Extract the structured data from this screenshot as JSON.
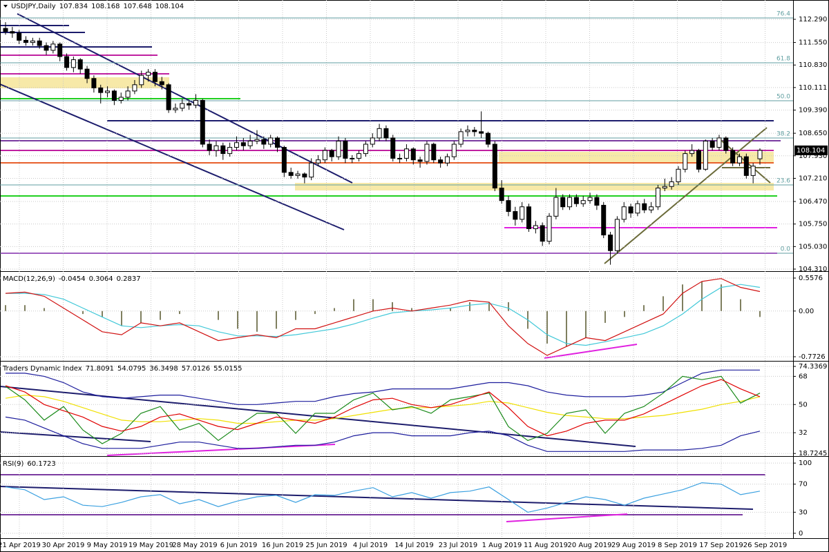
{
  "chart_data": [
    {
      "type": "candlestick",
      "title": "USDJPY,Daily",
      "ylim": [
        104.266,
        112.863
      ],
      "yticks": [
        {
          "value": 112.29,
          "label": "112.290"
        },
        {
          "value": 111.55,
          "label": "111.550"
        },
        {
          "value": 110.83,
          "label": "110.830"
        },
        110.111,
        {
          "value": 109.39,
          "label": "109.390"
        },
        {
          "value": 108.65,
          "label": "108.650"
        },
        {
          "value": 107.93,
          "label": "107.930"
        },
        {
          "value": 107.21,
          "label": "107.210"
        },
        {
          "value": 106.47,
          "label": "106.470"
        },
        {
          "value": 105.75,
          "label": "105.750"
        },
        {
          "value": 105.03,
          "label": "105.030"
        },
        {
          "value": 104.31,
          "label": "104.310"
        }
      ],
      "x_labels": [
        "21 Apr 2019",
        "30 Apr 2019",
        "9 May 2019",
        "19 May 2019",
        "28 May 2019",
        "6 Jun 2019",
        "16 Jun 2019",
        "25 Jun 2019",
        "4 Jul 2019",
        "14 Jul 2019",
        "23 Jul 2019",
        "1 Aug 2019",
        "11 Aug 2019",
        "20 Aug 2019",
        "29 Aug 2019",
        "8 Sep 2019",
        "17 Sep 2019",
        "26 Sep 2019"
      ],
      "fib_labels": [
        "76.4",
        "61.8",
        "50.0",
        "38.2",
        "23.6",
        "0.0"
      ],
      "fib_prices": [
        112.334,
        110.901,
        109.688,
        108.498,
        106.999,
        104.816
      ],
      "fib_color": "#5f9ea0",
      "candles": [
        [
          112.0,
          112.2,
          111.8,
          111.9
        ],
        [
          111.9,
          112.05,
          111.7,
          111.85
        ],
        [
          111.85,
          111.95,
          111.5,
          111.62
        ],
        [
          111.62,
          111.75,
          111.45,
          111.55
        ],
        [
          111.55,
          111.7,
          111.45,
          111.6
        ],
        [
          111.6,
          111.7,
          111.35,
          111.45
        ],
        [
          111.45,
          111.55,
          111.15,
          111.3
        ],
        [
          111.3,
          111.6,
          111.2,
          111.5
        ],
        [
          111.5,
          111.55,
          110.95,
          111.1
        ],
        [
          111.1,
          111.2,
          110.65,
          110.75
        ],
        [
          110.75,
          111.1,
          110.6,
          111.0
        ],
        [
          111.0,
          111.05,
          110.55,
          110.7
        ],
        [
          110.7,
          110.8,
          110.25,
          110.4
        ],
        [
          110.4,
          110.5,
          109.95,
          110.1
        ],
        [
          110.1,
          110.2,
          109.6,
          109.95
        ],
        [
          109.95,
          110.15,
          109.8,
          110.0
        ],
        [
          110.0,
          110.05,
          109.55,
          109.7
        ],
        [
          109.7,
          109.95,
          109.6,
          109.8
        ],
        [
          109.8,
          110.15,
          109.7,
          110.0
        ],
        [
          110.0,
          110.35,
          109.9,
          110.2
        ],
        [
          110.2,
          110.65,
          110.1,
          110.5
        ],
        [
          110.5,
          110.7,
          110.3,
          110.6
        ],
        [
          110.6,
          110.7,
          110.15,
          110.3
        ],
        [
          110.3,
          110.45,
          110.05,
          110.2
        ],
        [
          110.2,
          110.25,
          109.3,
          109.4
        ],
        [
          109.4,
          109.6,
          109.3,
          109.45
        ],
        [
          109.45,
          109.75,
          109.35,
          109.6
        ],
        [
          109.6,
          109.7,
          109.4,
          109.55
        ],
        [
          109.55,
          109.9,
          109.45,
          109.7
        ],
        [
          109.7,
          109.75,
          108.2,
          108.3
        ],
        [
          108.3,
          108.45,
          107.95,
          108.1
        ],
        [
          108.1,
          108.4,
          107.9,
          108.25
        ],
        [
          108.25,
          108.35,
          107.8,
          108.0
        ],
        [
          108.0,
          108.35,
          107.9,
          108.2
        ],
        [
          108.2,
          108.55,
          108.1,
          108.35
        ],
        [
          108.35,
          108.5,
          108.1,
          108.25
        ],
        [
          108.25,
          108.6,
          108.15,
          108.4
        ],
        [
          108.4,
          108.75,
          108.3,
          108.45
        ],
        [
          108.45,
          108.55,
          108.15,
          108.3
        ],
        [
          108.3,
          108.6,
          108.2,
          108.5
        ],
        [
          108.5,
          108.55,
          108.05,
          108.2
        ],
        [
          108.2,
          108.25,
          107.25,
          107.4
        ],
        [
          107.4,
          107.55,
          107.2,
          107.3
        ],
        [
          107.3,
          107.45,
          107.2,
          107.35
        ],
        [
          107.35,
          107.4,
          107.05,
          107.25
        ],
        [
          107.25,
          107.85,
          107.15,
          107.7
        ],
        [
          107.7,
          107.95,
          107.6,
          107.8
        ],
        [
          107.8,
          108.2,
          107.7,
          108.1
        ],
        [
          108.1,
          108.15,
          107.75,
          107.9
        ],
        [
          107.9,
          108.55,
          107.8,
          108.4
        ],
        [
          108.4,
          108.5,
          107.7,
          107.85
        ],
        [
          107.85,
          107.95,
          107.7,
          107.85
        ],
        [
          107.85,
          108.1,
          107.75,
          108.0
        ],
        [
          108.0,
          108.4,
          107.9,
          108.3
        ],
        [
          108.3,
          108.65,
          108.2,
          108.5
        ],
        [
          108.5,
          108.95,
          108.4,
          108.8
        ],
        [
          108.8,
          108.9,
          108.4,
          108.5
        ],
        [
          108.5,
          108.6,
          107.75,
          107.85
        ],
        [
          107.85,
          108.0,
          107.7,
          107.85
        ],
        [
          107.85,
          108.3,
          107.75,
          108.15
        ],
        [
          108.15,
          108.2,
          107.65,
          107.8
        ],
        [
          107.8,
          107.9,
          107.55,
          107.75
        ],
        [
          107.75,
          108.4,
          107.65,
          108.3
        ],
        [
          108.3,
          108.35,
          107.7,
          107.8
        ],
        [
          107.8,
          107.9,
          107.55,
          107.7
        ],
        [
          107.7,
          108.0,
          107.6,
          107.9
        ],
        [
          107.9,
          108.4,
          107.8,
          108.3
        ],
        [
          108.3,
          108.8,
          108.2,
          108.7
        ],
        [
          108.7,
          108.9,
          108.55,
          108.75
        ],
        [
          108.75,
          108.85,
          108.55,
          108.7
        ],
        [
          108.7,
          109.35,
          108.5,
          108.65
        ],
        [
          108.65,
          108.7,
          108.2,
          108.3
        ],
        [
          108.3,
          108.4,
          106.8,
          106.9
        ],
        [
          106.9,
          107.15,
          106.4,
          106.5
        ],
        [
          106.5,
          106.65,
          106.0,
          106.15
        ],
        [
          106.15,
          106.3,
          105.7,
          105.9
        ],
        [
          105.9,
          106.45,
          105.8,
          106.3
        ],
        [
          106.3,
          106.4,
          105.5,
          105.6
        ],
        [
          105.6,
          105.85,
          105.45,
          105.7
        ],
        [
          105.7,
          105.8,
          105.05,
          105.2
        ],
        [
          105.2,
          106.1,
          105.1,
          106.0
        ],
        [
          106.0,
          106.9,
          105.9,
          106.6
        ],
        [
          106.6,
          106.7,
          106.2,
          106.3
        ],
        [
          106.3,
          106.7,
          106.2,
          106.6
        ],
        [
          106.6,
          106.7,
          106.3,
          106.4
        ],
        [
          106.4,
          106.65,
          106.3,
          106.5
        ],
        [
          106.5,
          106.75,
          106.4,
          106.6
        ],
        [
          106.6,
          106.7,
          106.2,
          106.35
        ],
        [
          106.35,
          106.45,
          105.3,
          105.4
        ],
        [
          105.4,
          105.5,
          104.45,
          104.9
        ],
        [
          104.9,
          106.0,
          104.8,
          105.9
        ],
        [
          105.9,
          106.45,
          105.8,
          106.3
        ],
        [
          106.3,
          106.4,
          105.95,
          106.1
        ],
        [
          106.1,
          106.5,
          106.0,
          106.4
        ],
        [
          106.4,
          106.55,
          106.1,
          106.2
        ],
        [
          106.2,
          106.45,
          106.1,
          106.3
        ],
        [
          106.3,
          107.0,
          106.2,
          106.9
        ],
        [
          106.9,
          107.2,
          106.8,
          106.95
        ],
        [
          106.95,
          107.25,
          106.85,
          107.1
        ],
        [
          107.1,
          107.6,
          107.0,
          107.5
        ],
        [
          107.5,
          108.1,
          107.4,
          108.0
        ],
        [
          108.0,
          108.3,
          107.9,
          108.1
        ],
        [
          108.1,
          108.15,
          107.4,
          107.5
        ],
        [
          107.5,
          108.45,
          107.45,
          108.4
        ],
        [
          108.4,
          108.5,
          108.1,
          108.2
        ],
        [
          108.2,
          108.6,
          108.1,
          108.5
        ],
        [
          108.5,
          108.55,
          108.0,
          108.1
        ],
        [
          108.1,
          108.2,
          107.6,
          107.7
        ],
        [
          107.7,
          108.0,
          107.6,
          107.9
        ],
        [
          107.9,
          108.0,
          107.2,
          107.3
        ],
        [
          107.3,
          107.7,
          107.05,
          107.6
        ],
        [
          107.834,
          108.168,
          107.648,
          108.104
        ]
      ]
    },
    {
      "type": "macd",
      "title": "MACD(12,26,9)",
      "readout": [
        -0.0454,
        0.3064,
        0.2837
      ],
      "ylim": [
        -0.831,
        0.651
      ],
      "yticks": [
        0.5576,
        {
          "value": 0,
          "label": "0.00"
        },
        -0.7726
      ],
      "histogram_color": "#7f7f5f",
      "histogram": [
        0.1,
        0.1,
        0.05,
        0.0,
        -0.05,
        -0.1,
        -0.25,
        -0.2,
        -0.15,
        -0.05,
        0.0,
        -0.15,
        -0.3,
        -0.35,
        -0.3,
        -0.15,
        -0.05,
        0.05,
        0.2,
        0.2,
        0.15,
        0.05,
        0.0,
        0.05,
        0.15,
        0.15,
        0.15,
        -0.3,
        -0.55,
        -0.6,
        -0.45,
        -0.2,
        -0.1,
        0.1,
        0.25,
        0.45,
        0.5,
        0.45,
        0.2,
        -0.1
      ],
      "series": [
        {
          "color": "#40c8d8",
          "values": [
            0.3,
            0.3,
            0.28,
            0.2,
            0.05,
            -0.1,
            -0.25,
            -0.28,
            -0.25,
            -0.23,
            -0.25,
            -0.35,
            -0.42,
            -0.42,
            -0.43,
            -0.4,
            -0.35,
            -0.3,
            -0.22,
            -0.12,
            -0.03,
            0.0,
            0.02,
            0.05,
            0.1,
            0.13,
            0.05,
            -0.15,
            -0.4,
            -0.55,
            -0.58,
            -0.52,
            -0.45,
            -0.38,
            -0.25,
            -0.05,
            0.2,
            0.4,
            0.45,
            0.4
          ]
        },
        {
          "color": "#d01010",
          "values": [
            0.3,
            0.32,
            0.25,
            0.05,
            -0.15,
            -0.35,
            -0.4,
            -0.2,
            -0.25,
            -0.2,
            -0.35,
            -0.5,
            -0.45,
            -0.4,
            -0.45,
            -0.3,
            -0.3,
            -0.2,
            -0.1,
            0.0,
            0.05,
            0.0,
            0.05,
            0.1,
            0.18,
            0.15,
            -0.25,
            -0.55,
            -0.75,
            -0.6,
            -0.45,
            -0.5,
            -0.35,
            -0.2,
            -0.05,
            0.3,
            0.5,
            0.55,
            0.4,
            0.33
          ]
        }
      ]
    },
    {
      "type": "line",
      "title": "Traders Dynamic Index",
      "readout": [
        71.8091,
        54.0795,
        36.3498,
        57.0126,
        55.0155
      ],
      "ylim": [
        17.5,
        77
      ],
      "yticks": [
        74.3369,
        68,
        50,
        32,
        18.7245
      ],
      "series": [
        {
          "color": "#1c1c9c",
          "values": [
            70,
            70,
            68,
            64,
            58,
            55,
            54,
            55,
            56,
            56,
            54,
            52,
            50,
            50,
            51,
            52,
            52,
            55,
            57,
            58,
            60,
            60,
            60,
            60,
            62,
            64,
            64,
            62,
            58,
            56,
            55,
            55,
            55,
            56,
            58,
            64,
            70,
            72,
            72,
            72
          ]
        },
        {
          "color": "#1c1c9c",
          "values": [
            42,
            40,
            35,
            30,
            25,
            22,
            22,
            22,
            24,
            26,
            26,
            24,
            22,
            22,
            23,
            24,
            24,
            26,
            30,
            32,
            32,
            30,
            30,
            30,
            32,
            33,
            30,
            24,
            20,
            20,
            20,
            20,
            20,
            21,
            21,
            21,
            22,
            24,
            30,
            33
          ]
        },
        {
          "color": "#f0e000",
          "values": [
            54,
            56,
            55,
            52,
            48,
            44,
            40,
            39,
            39,
            40,
            41,
            40,
            38,
            38,
            39,
            40,
            40,
            41,
            43,
            45,
            47,
            48,
            48,
            49,
            50,
            52,
            51,
            48,
            45,
            43,
            42,
            41,
            41,
            42,
            43,
            45,
            47,
            50,
            52,
            55
          ]
        },
        {
          "color": "#1a8a1a",
          "values": [
            61.6,
            53,
            40,
            48.7,
            33.7,
            25,
            31.6,
            44.4,
            48.7,
            33.7,
            38,
            27,
            35.9,
            44.4,
            44.4,
            31.6,
            44.4,
            44.4,
            53,
            57.3,
            46.6,
            48.7,
            44.4,
            53,
            55,
            57.3,
            35.9,
            27,
            31.6,
            44.4,
            46.6,
            31.6,
            44.4,
            48.7,
            57.3,
            68,
            65.9,
            68,
            50.9,
            57.3
          ]
        },
        {
          "color": "#e00000",
          "values": [
            62,
            58,
            50,
            46,
            42,
            36,
            33,
            36,
            42,
            44,
            40,
            36,
            34,
            38,
            42,
            40,
            38,
            42,
            48,
            53,
            54,
            50,
            48,
            50,
            54,
            58,
            48,
            36,
            30,
            33,
            38,
            40,
            40,
            44,
            50,
            56,
            62,
            66,
            60,
            55
          ]
        }
      ]
    },
    {
      "type": "line",
      "title": "RSI(9)",
      "readout": [
        60.1723
      ],
      "ylim": [
        -7,
        108
      ],
      "yticks": [
        100,
        70,
        30,
        0
      ],
      "series": [
        {
          "color": "#3aa0e0",
          "values": [
            66,
            62,
            48,
            52,
            40,
            38,
            44,
            52,
            55,
            42,
            48,
            38,
            46,
            52,
            54,
            44,
            55,
            54,
            60,
            65,
            52,
            58,
            50,
            58,
            60,
            66,
            48,
            30,
            36,
            44,
            52,
            48,
            40,
            50,
            56,
            62,
            72,
            70,
            55,
            60
          ]
        }
      ]
    }
  ]
}
